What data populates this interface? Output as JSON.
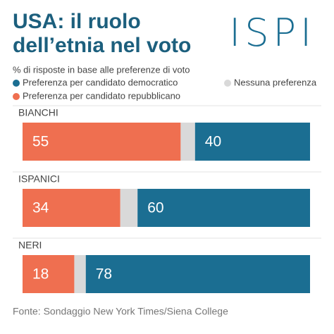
{
  "chart_data": {
    "type": "stacked_barh",
    "title": "USA: il ruolo dell’etnia nel voto",
    "logo": "ISPI",
    "subtitle": "% di risposte in base alle preferenze di voto",
    "source": "Fonte: Sondaggio New York Times/Siena College",
    "categories": [
      "BIANCHI",
      "ISPANICI",
      "NERI"
    ],
    "xlim": [
      0,
      100
    ],
    "series": [
      {
        "name": "Preferenza per candidato repubblicano",
        "color": "#ef6f50",
        "values": [
          55,
          34,
          18
        ],
        "labels": true
      },
      {
        "name": "Nessuna preferenza",
        "color": "#d9d9d9",
        "values": [
          5,
          6,
          4
        ],
        "labels": false
      },
      {
        "name": "Preferenza per candidato democratico",
        "color": "#1b6e92",
        "values": [
          40,
          60,
          78
        ],
        "labels": true
      }
    ]
  }
}
